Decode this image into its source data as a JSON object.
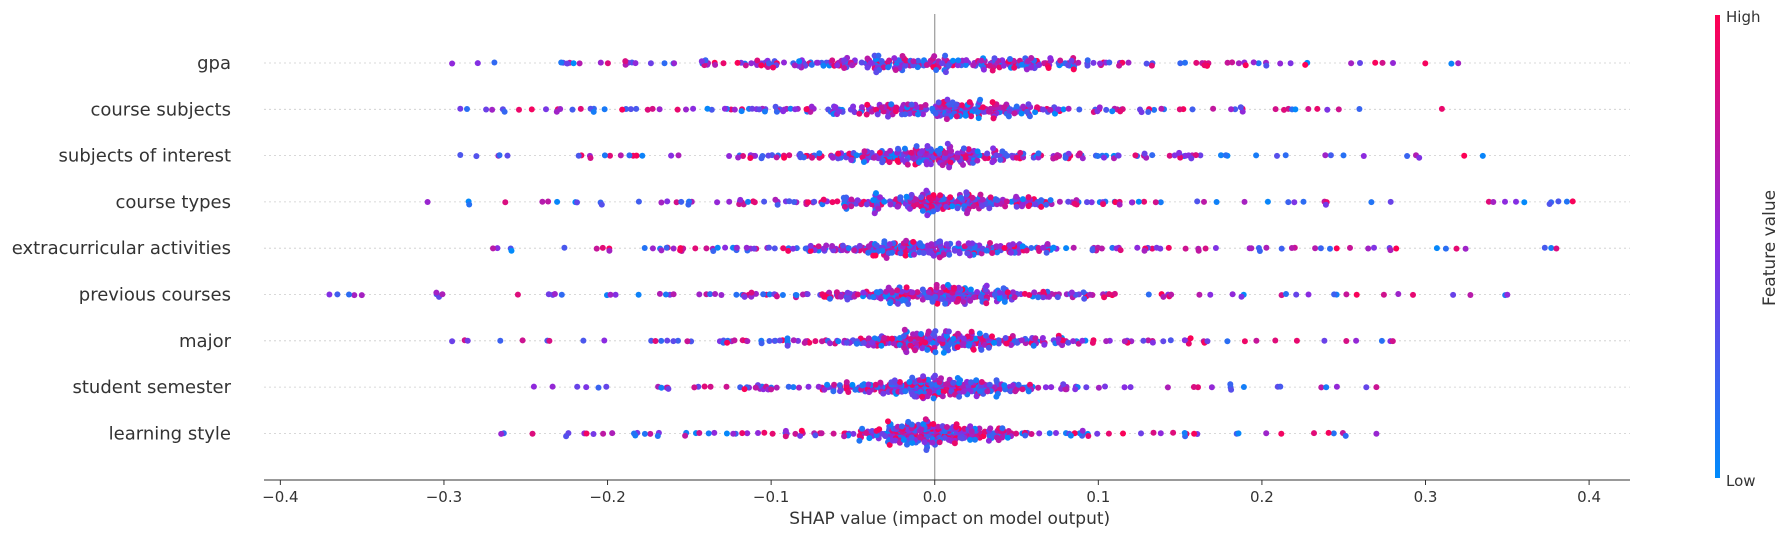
{
  "chart_data": {
    "type": "scatter",
    "subtype": "shap-beeswarm",
    "title": "",
    "xlabel": "SHAP value (impact on model output)",
    "ylabel": "",
    "xlim": [
      -0.41,
      0.425
    ],
    "xticks": [
      -0.4,
      -0.3,
      -0.2,
      -0.1,
      0.0,
      0.1,
      0.2,
      0.3,
      0.4
    ],
    "xtick_labels": [
      "−0.4",
      "−0.3",
      "−0.2",
      "−0.1",
      "0.0",
      "0.1",
      "0.2",
      "0.3",
      "0.4"
    ],
    "features": [
      {
        "name": "gpa",
        "min": -0.295,
        "max": 0.32,
        "spread": 0.26
      },
      {
        "name": "course subjects",
        "min": -0.29,
        "max": 0.31,
        "spread": 0.2
      },
      {
        "name": "subjects of interest",
        "min": -0.29,
        "max": 0.335,
        "spread": 0.21
      },
      {
        "name": "course types",
        "min": -0.31,
        "max": 0.39,
        "spread": 0.2
      },
      {
        "name": "extracurricular activities",
        "min": -0.27,
        "max": 0.38,
        "spread": 0.22
      },
      {
        "name": "previous courses",
        "min": -0.37,
        "max": 0.35,
        "spread": 0.21
      },
      {
        "name": "major",
        "min": -0.295,
        "max": 0.28,
        "spread": 0.21
      },
      {
        "name": "student semester",
        "min": -0.245,
        "max": 0.27,
        "spread": 0.14
      },
      {
        "name": "learning style",
        "min": -0.265,
        "max": 0.27,
        "spread": 0.14
      }
    ],
    "colorbar": {
      "high_label": "High",
      "low_label": "Low",
      "title": "Feature value",
      "low_color": "#008bfb",
      "mid_color": "#8a2be2",
      "high_color": "#ff0052"
    },
    "grid": false,
    "zero_line": true
  }
}
